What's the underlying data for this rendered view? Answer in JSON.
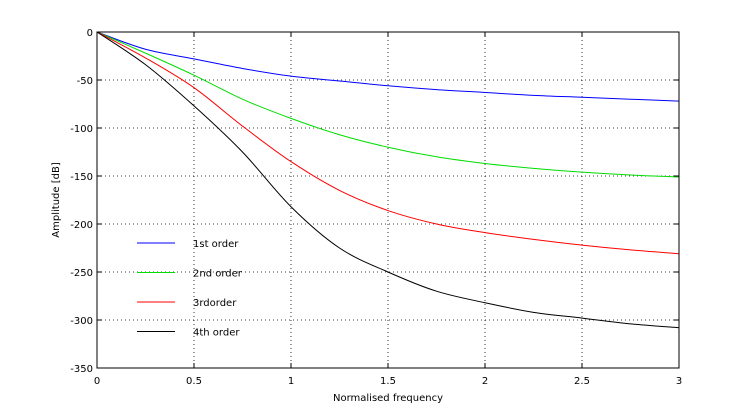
{
  "chart_data": {
    "type": "line",
    "title": "",
    "xlabel": "Normalised frequency",
    "ylabel": "Amplitude [dB]",
    "xlim": [
      0,
      3
    ],
    "ylim": [
      -350,
      0
    ],
    "x_ticks": [
      "0",
      "0.5",
      "1",
      "1.5",
      "2",
      "2.5",
      "3"
    ],
    "y_ticks": [
      "0",
      "-50",
      "-100",
      "-150",
      "-200",
      "-250",
      "-300",
      "-350"
    ],
    "x_tick_values": [
      0,
      0.5,
      1,
      1.5,
      2,
      2.5,
      3
    ],
    "y_tick_values": [
      0,
      -50,
      -100,
      -150,
      -200,
      -250,
      -300,
      -350
    ],
    "grid": true,
    "legend_position": "bottom-left",
    "x": [
      0,
      0.25,
      0.5,
      0.75,
      1,
      1.25,
      1.5,
      1.75,
      2,
      2.25,
      2.5,
      2.75,
      3
    ],
    "series": [
      {
        "name": "1st order",
        "color": "#0000ff",
        "values": [
          0,
          -18,
          -28,
          -38,
          -46,
          -51,
          -56,
          -60,
          -63,
          -66,
          -68,
          -70,
          -72
        ]
      },
      {
        "name": "2nd order",
        "color": "#00dd00",
        "values": [
          0,
          -22,
          -45,
          -70,
          -90,
          -107,
          -120,
          -130,
          -137,
          -142,
          -146,
          -149,
          -151
        ]
      },
      {
        "name": "3rdorder",
        "color": "#ff0000",
        "values": [
          0,
          -27,
          -58,
          -98,
          -135,
          -165,
          -186,
          -200,
          -209,
          -216,
          -222,
          -227,
          -231
        ]
      },
      {
        "name": "4th order",
        "color": "#000000",
        "values": [
          0,
          -34,
          -77,
          -125,
          -182,
          -225,
          -250,
          -270,
          -282,
          -292,
          -298,
          -304,
          -308
        ]
      }
    ]
  }
}
